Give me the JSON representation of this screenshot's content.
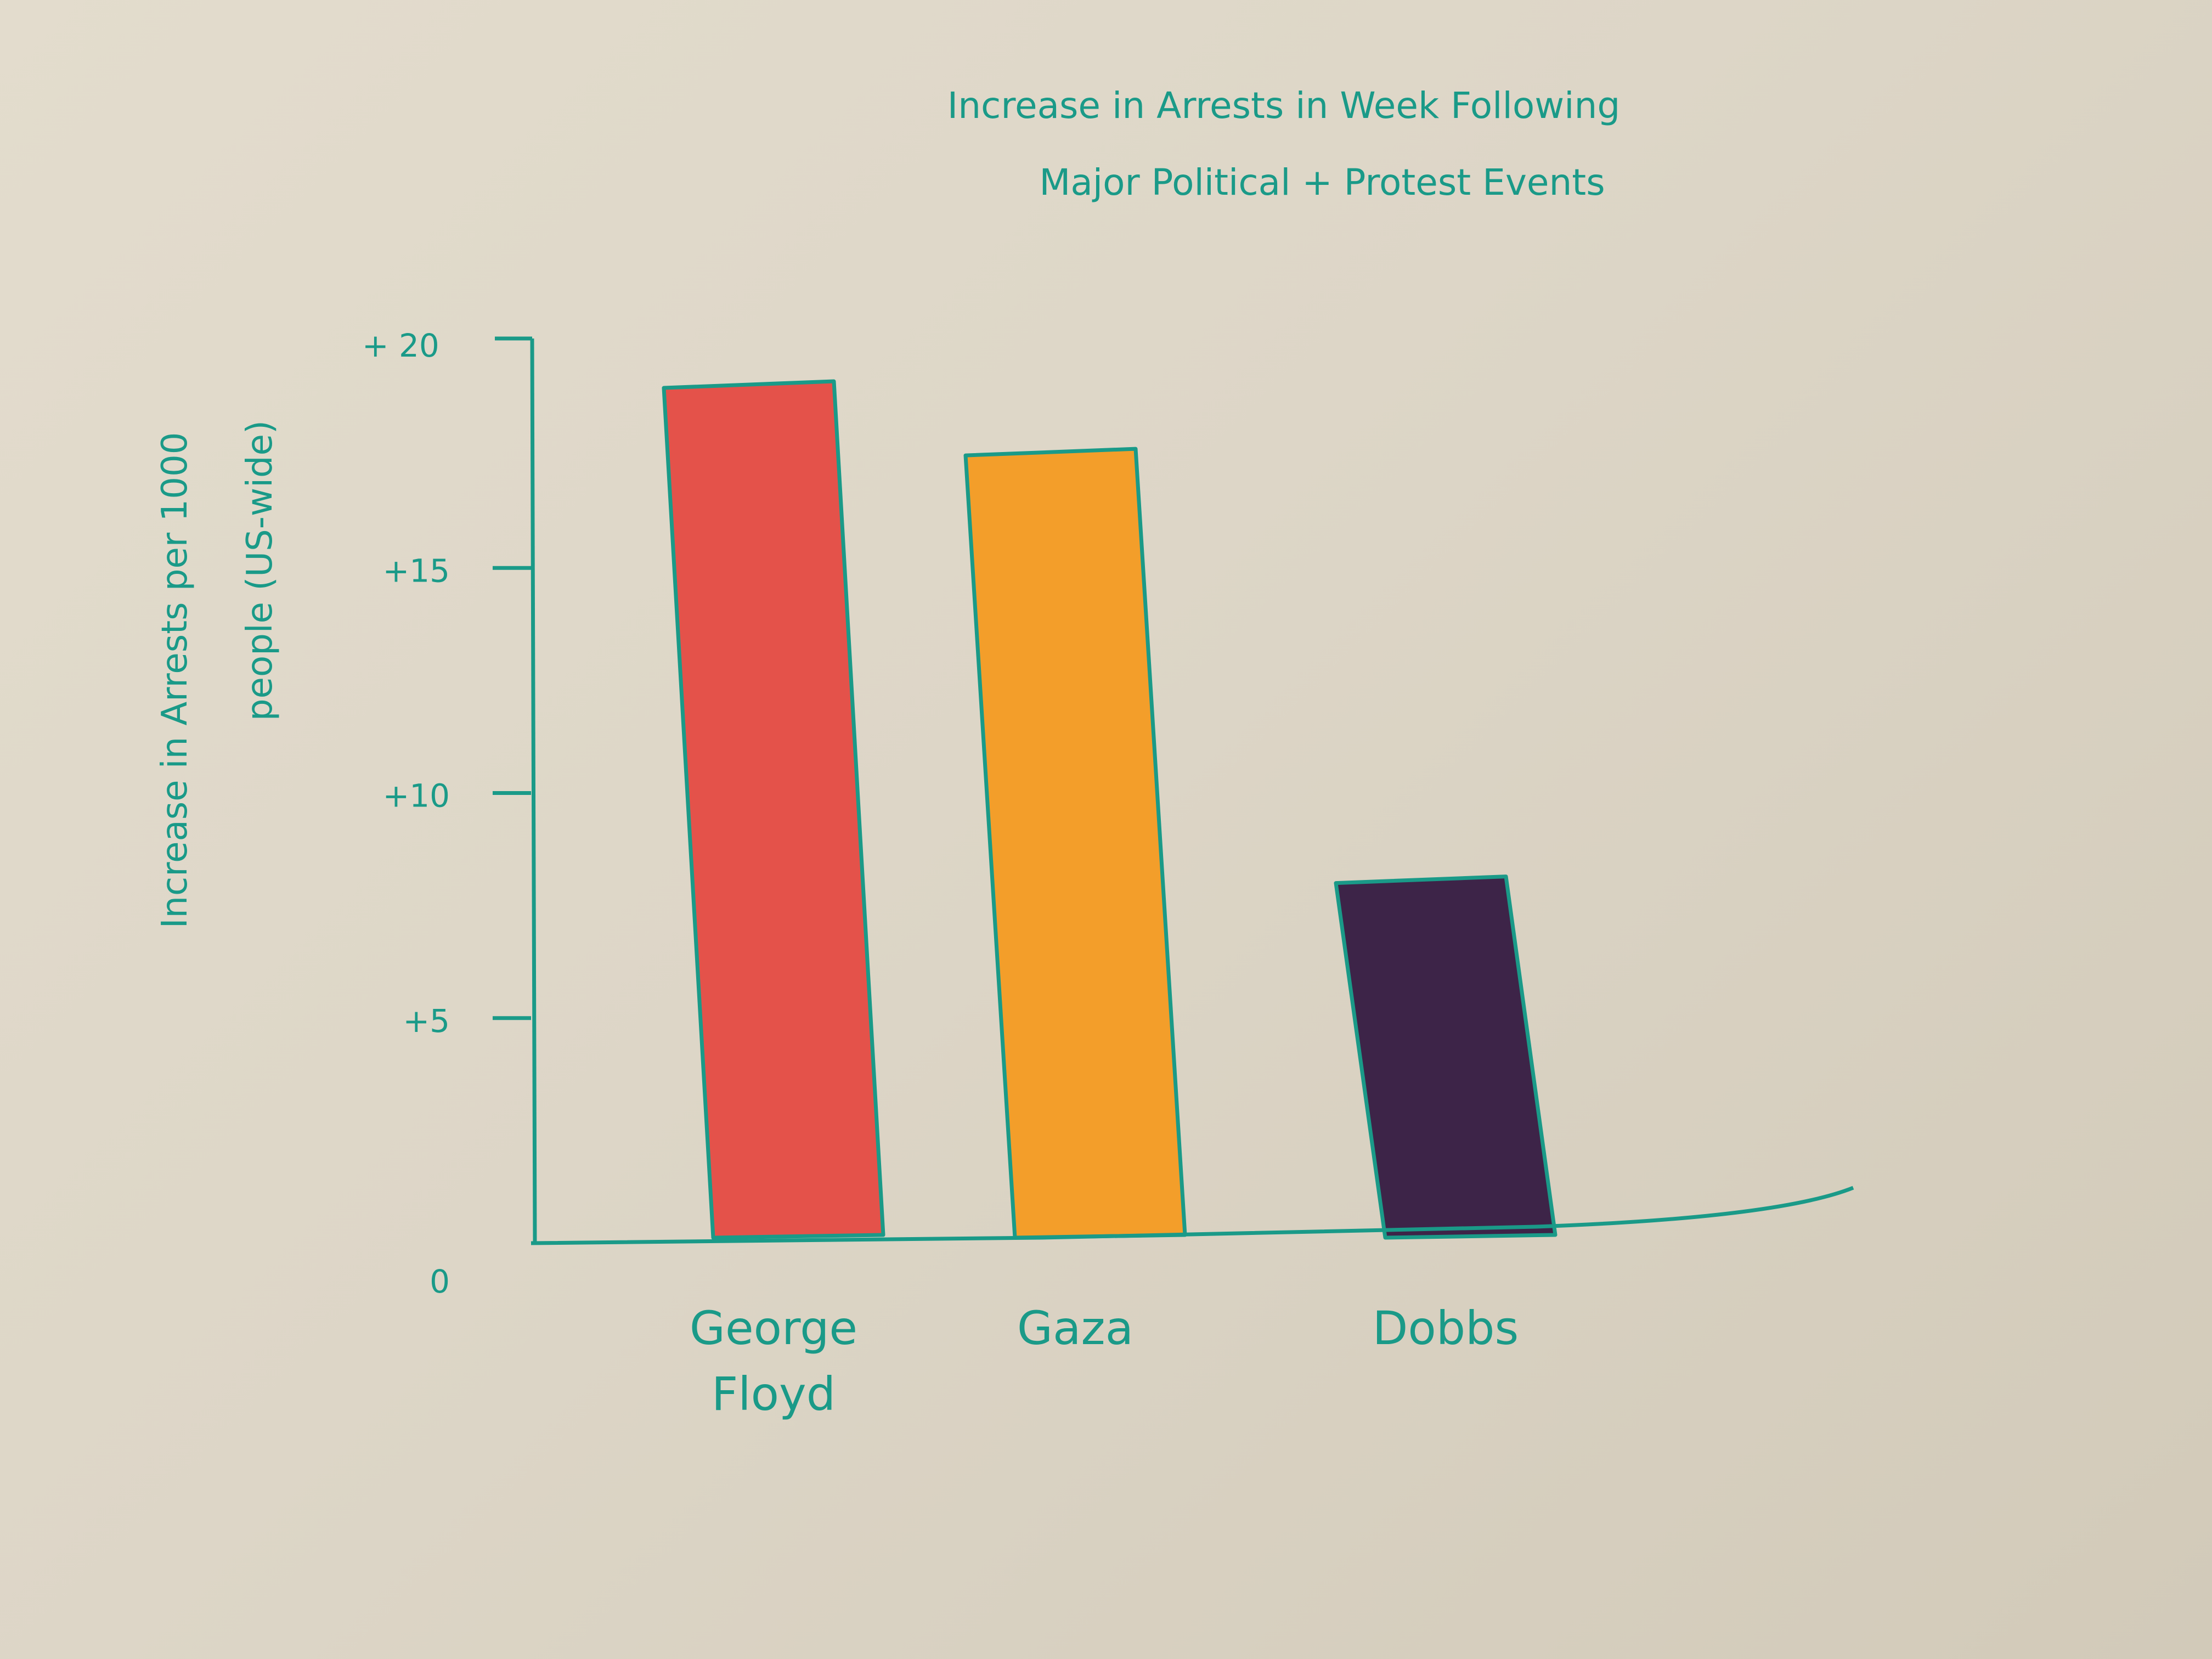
{
  "colors": {
    "paper": "#ddd6c7",
    "ink": "#1a9a88",
    "bar_colors": [
      "#e4524a",
      "#f39e2a",
      "#3d2448"
    ]
  },
  "chart_data": {
    "type": "bar",
    "title_lines": [
      "Increase in Arrests in Week Following",
      "Major Political + Protest Events"
    ],
    "ylabel_lines": [
      "Increase in Arrests per 1000",
      "people (US-wide)"
    ],
    "xlabel": "",
    "categories": [
      {
        "lines": [
          "George",
          "Floyd"
        ]
      },
      {
        "lines": [
          "Gaza"
        ]
      },
      {
        "lines": [
          "Dobbs"
        ]
      }
    ],
    "values": [
      19,
      17.5,
      8
    ],
    "ylim": [
      0,
      20
    ],
    "yticks": [
      0,
      5,
      10,
      15,
      20
    ],
    "ytick_labels": [
      "0",
      "+5",
      "+10",
      "+15",
      "+ 20"
    ],
    "grid": false,
    "legend": "none"
  }
}
